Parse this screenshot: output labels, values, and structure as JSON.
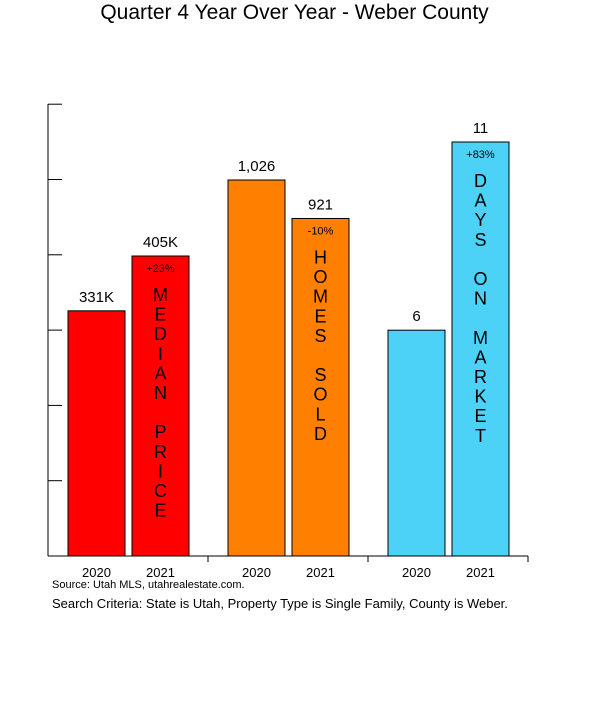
{
  "chart_data": {
    "type": "bar",
    "title": "Quarter 4 Year Over Year - Weber County",
    "groups": [
      {
        "name": "MEDIAN PRICE",
        "color": "#ff0000",
        "categories": [
          "2020",
          "2021"
        ],
        "values": [
          331,
          405
        ],
        "value_labels": [
          "331K",
          "405K"
        ],
        "change_label": "+23%",
        "vertical_words": [
          "MEDIAN",
          "PRICE"
        ]
      },
      {
        "name": "HOMES SOLD",
        "color": "#ff8000",
        "categories": [
          "2020",
          "2021"
        ],
        "values": [
          1026,
          921
        ],
        "value_labels": [
          "1,026",
          "921"
        ],
        "change_label": "-10%",
        "vertical_words": [
          "HOMES",
          "SOLD"
        ]
      },
      {
        "name": "DAYS ON MARKET",
        "color": "#4dd2f7",
        "categories": [
          "2020",
          "2021"
        ],
        "values": [
          6,
          11
        ],
        "value_labels": [
          "6",
          "11"
        ],
        "change_label": "+83%",
        "vertical_words": [
          "DAYS",
          "ON",
          "MARKET"
        ]
      }
    ],
    "grid": false,
    "legend": "none"
  },
  "footer": {
    "source": "Source: Utah MLS, utahrealestate.com.",
    "criteria": "Search Criteria: State is Utah, Property Type is Single Family, County is Weber."
  }
}
